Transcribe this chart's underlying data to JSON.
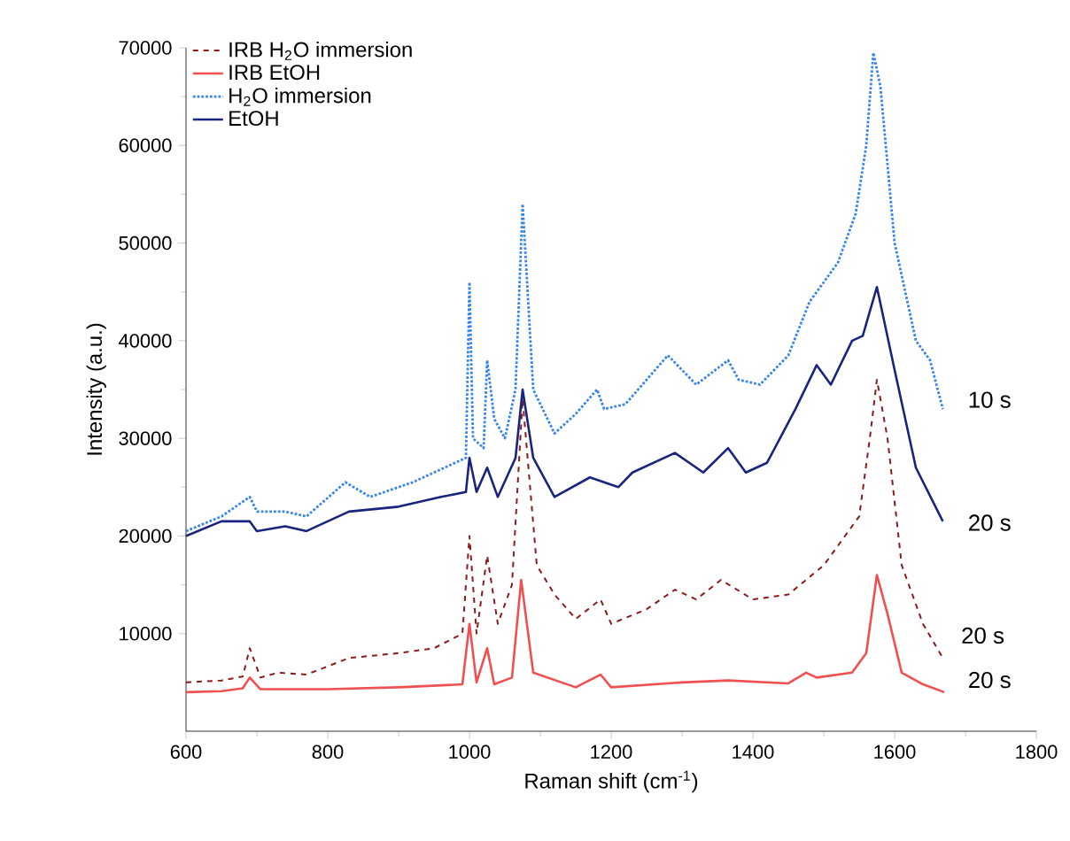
{
  "chart_data": {
    "type": "line",
    "xlabel": "Raman shift (cm$^{-1}$)",
    "ylabel": "Intensity (a.u.)",
    "xlim": [
      600,
      1800
    ],
    "ylim": [
      0,
      70000
    ],
    "xticks": [
      600,
      800,
      1000,
      1200,
      1400,
      1600,
      1800
    ],
    "yticks": [
      10000,
      20000,
      30000,
      40000,
      50000,
      60000,
      70000
    ],
    "legend": "top left",
    "grid": false,
    "series": [
      {
        "name": "IRB H$_{2}$O immersion",
        "color": "#8b1a1a",
        "line_style": "dashed",
        "x": [
          600,
          650,
          680,
          690,
          705,
          730,
          770,
          830,
          900,
          950,
          990,
          1000,
          1010,
          1025,
          1040,
          1060,
          1075,
          1095,
          1120,
          1150,
          1185,
          1200,
          1250,
          1290,
          1320,
          1355,
          1400,
          1450,
          1500,
          1550,
          1565,
          1575,
          1590,
          1610,
          1640,
          1668
        ],
        "values": [
          5000,
          5200,
          5600,
          8500,
          5500,
          6000,
          5800,
          7500,
          8000,
          8500,
          10000,
          20000,
          10000,
          18000,
          11000,
          15000,
          34000,
          17000,
          14000,
          11500,
          13500,
          11000,
          12500,
          14500,
          13500,
          15500,
          13500,
          14000,
          17000,
          22000,
          30000,
          36000,
          30000,
          17000,
          11000,
          7500
        ]
      },
      {
        "name": "IRB EtOH",
        "color": "#f05050",
        "line_style": "solid",
        "x": [
          600,
          650,
          680,
          690,
          705,
          800,
          900,
          990,
          1000,
          1010,
          1025,
          1035,
          1060,
          1073,
          1090,
          1110,
          1150,
          1185,
          1200,
          1300,
          1365,
          1450,
          1475,
          1490,
          1540,
          1560,
          1575,
          1590,
          1610,
          1640,
          1670
        ],
        "values": [
          4000,
          4100,
          4400,
          5500,
          4300,
          4300,
          4500,
          4800,
          11000,
          5000,
          8500,
          4800,
          5500,
          15500,
          6000,
          5500,
          4500,
          5800,
          4500,
          5000,
          5200,
          4900,
          6000,
          5500,
          6000,
          8000,
          16000,
          12000,
          6000,
          4800,
          4000
        ]
      },
      {
        "name": "H$_{2}$O immersion",
        "color": "#3a86e8",
        "line_style": "dotted",
        "x": [
          600,
          650,
          690,
          700,
          740,
          770,
          825,
          860,
          920,
          980,
          995,
          1000,
          1005,
          1020,
          1025,
          1035,
          1050,
          1065,
          1075,
          1090,
          1120,
          1150,
          1180,
          1190,
          1220,
          1280,
          1320,
          1365,
          1380,
          1410,
          1450,
          1480,
          1520,
          1545,
          1560,
          1570,
          1580,
          1600,
          1630,
          1650,
          1668
        ],
        "values": [
          20500,
          22000,
          24000,
          22500,
          22500,
          22000,
          25500,
          24000,
          25500,
          27500,
          28000,
          46000,
          30000,
          29000,
          38000,
          32000,
          30000,
          35000,
          54000,
          35000,
          30500,
          32500,
          35000,
          33000,
          33500,
          38500,
          35500,
          38000,
          36000,
          35500,
          38500,
          44000,
          48000,
          53000,
          60000,
          69500,
          66000,
          50000,
          40000,
          38000,
          33000
        ]
      },
      {
        "name": "EtOH",
        "color": "#1a237e",
        "line_style": "solid",
        "x": [
          600,
          650,
          690,
          700,
          740,
          770,
          830,
          900,
          960,
          995,
          1000,
          1010,
          1025,
          1040,
          1065,
          1075,
          1090,
          1120,
          1170,
          1210,
          1230,
          1290,
          1330,
          1365,
          1390,
          1420,
          1460,
          1490,
          1510,
          1540,
          1555,
          1575,
          1600,
          1630,
          1668
        ],
        "values": [
          20000,
          21500,
          21500,
          20500,
          21000,
          20500,
          22500,
          23000,
          24000,
          24500,
          28000,
          24500,
          27000,
          24000,
          28000,
          35000,
          28000,
          24000,
          26000,
          25000,
          26500,
          28500,
          26500,
          29000,
          26500,
          27500,
          33000,
          37500,
          35500,
          40000,
          40500,
          45500,
          37000,
          27000,
          21500
        ]
      }
    ],
    "annotations": [
      "10 s",
      "20 s",
      "20 s",
      "20 s"
    ]
  }
}
